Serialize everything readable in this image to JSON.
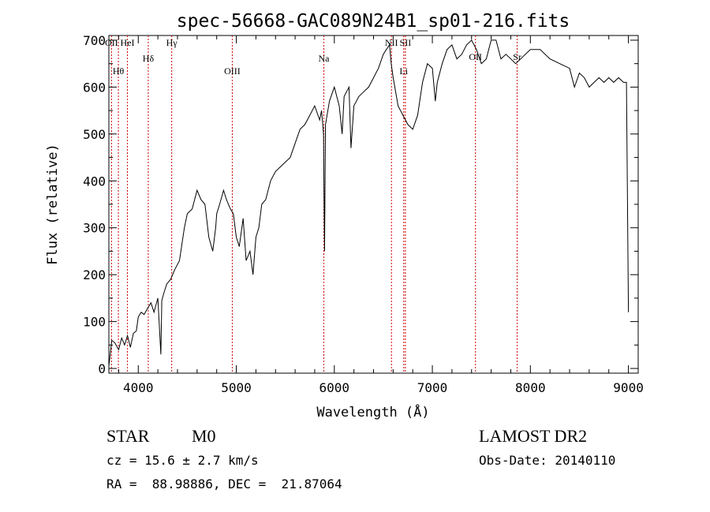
{
  "chart_data": {
    "type": "line",
    "title": "spec-56668-GAC089N24B1_sp01-216.fits",
    "xlabel": "Wavelength (Å)",
    "ylabel": "Flux (relative)",
    "xlim": [
      3700,
      9100
    ],
    "ylim": [
      -10,
      710
    ],
    "xticks": [
      4000,
      5000,
      6000,
      7000,
      8000,
      9000
    ],
    "xtick_labels": [
      "4000",
      "5000",
      "6000",
      "7000",
      "8000",
      "9000"
    ],
    "yticks": [
      0,
      100,
      200,
      300,
      400,
      500,
      600,
      700
    ],
    "ytick_labels": [
      "0",
      "100",
      "200",
      "300",
      "400",
      "500",
      "600",
      "700"
    ],
    "grid": false,
    "line_color": "#000000",
    "marker_color": "#cc0000",
    "series": [
      {
        "x": [
          3700,
          3730,
          3760,
          3800,
          3830,
          3860,
          3890,
          3920,
          3950,
          3980,
          4000,
          4030,
          4060,
          4100,
          4130,
          4160,
          4200,
          4230,
          4240,
          4260,
          4290,
          4330,
          4370,
          4420,
          4470,
          4500,
          4550,
          4600,
          4640,
          4680,
          4720,
          4760,
          4790,
          4800,
          4830,
          4870,
          4900,
          4940,
          4970,
          5000,
          5030,
          5070,
          5100,
          5140,
          5170,
          5200,
          5230,
          5260,
          5300,
          5350,
          5400,
          5450,
          5500,
          5550,
          5600,
          5650,
          5700,
          5750,
          5800,
          5850,
          5870,
          5890,
          5900,
          5910,
          5950,
          6000,
          6050,
          6080,
          6100,
          6150,
          6170,
          6200,
          6250,
          6300,
          6350,
          6400,
          6450,
          6500,
          6530,
          6563,
          6580,
          6600,
          6650,
          6700,
          6750,
          6800,
          6850,
          6900,
          6950,
          7000,
          7030,
          7050,
          7100,
          7150,
          7200,
          7250,
          7300,
          7350,
          7400,
          7450,
          7500,
          7550,
          7600,
          7650,
          7700,
          7750,
          7800,
          7850,
          7900,
          8000,
          8100,
          8200,
          8300,
          8400,
          8450,
          8500,
          8550,
          8600,
          8650,
          8700,
          8750,
          8800,
          8850,
          8900,
          8950,
          8980,
          9000
        ],
        "y": [
          5,
          60,
          55,
          40,
          65,
          50,
          70,
          45,
          75,
          80,
          110,
          120,
          115,
          130,
          140,
          120,
          150,
          30,
          145,
          160,
          180,
          190,
          210,
          230,
          300,
          330,
          340,
          380,
          360,
          350,
          280,
          250,
          300,
          330,
          350,
          380,
          360,
          340,
          330,
          280,
          260,
          320,
          230,
          250,
          200,
          280,
          300,
          350,
          360,
          400,
          420,
          430,
          440,
          450,
          480,
          510,
          520,
          540,
          560,
          530,
          550,
          500,
          250,
          520,
          570,
          600,
          560,
          500,
          580,
          600,
          470,
          560,
          580,
          590,
          600,
          620,
          640,
          670,
          680,
          690,
          650,
          620,
          560,
          540,
          520,
          510,
          540,
          610,
          650,
          640,
          570,
          610,
          650,
          680,
          690,
          660,
          670,
          690,
          700,
          680,
          650,
          660,
          700,
          700,
          660,
          670,
          660,
          650,
          660,
          680,
          680,
          660,
          650,
          640,
          600,
          630,
          620,
          600,
          610,
          620,
          610,
          620,
          610,
          620,
          610,
          610,
          120
        ]
      }
    ],
    "lines": [
      {
        "x": 3727,
        "label": "OII"
      },
      {
        "x": 3797,
        "label": "Hθ"
      },
      {
        "x": 3889,
        "label": "HeI"
      },
      {
        "x": 4102,
        "label": "Hδ"
      },
      {
        "x": 4341,
        "label": "Hγ"
      },
      {
        "x": 4959,
        "label": "OIII"
      },
      {
        "x": 5893,
        "label": "Na"
      },
      {
        "x": 6583,
        "label": "NII"
      },
      {
        "x": 6708,
        "label": "Li"
      },
      {
        "x": 6725,
        "label": "SII"
      },
      {
        "x": 7440,
        "label": "OII"
      },
      {
        "x": 7865,
        "label": "Sr"
      }
    ]
  },
  "info": {
    "object_class": "STAR",
    "subclass": "M0",
    "survey": "LAMOST DR2",
    "cz": "cz = 15.6 ± 2.7 km/s",
    "obs_date": "Obs-Date: 20140110",
    "coords": "RA =  88.98886, DEC =  21.87064"
  }
}
